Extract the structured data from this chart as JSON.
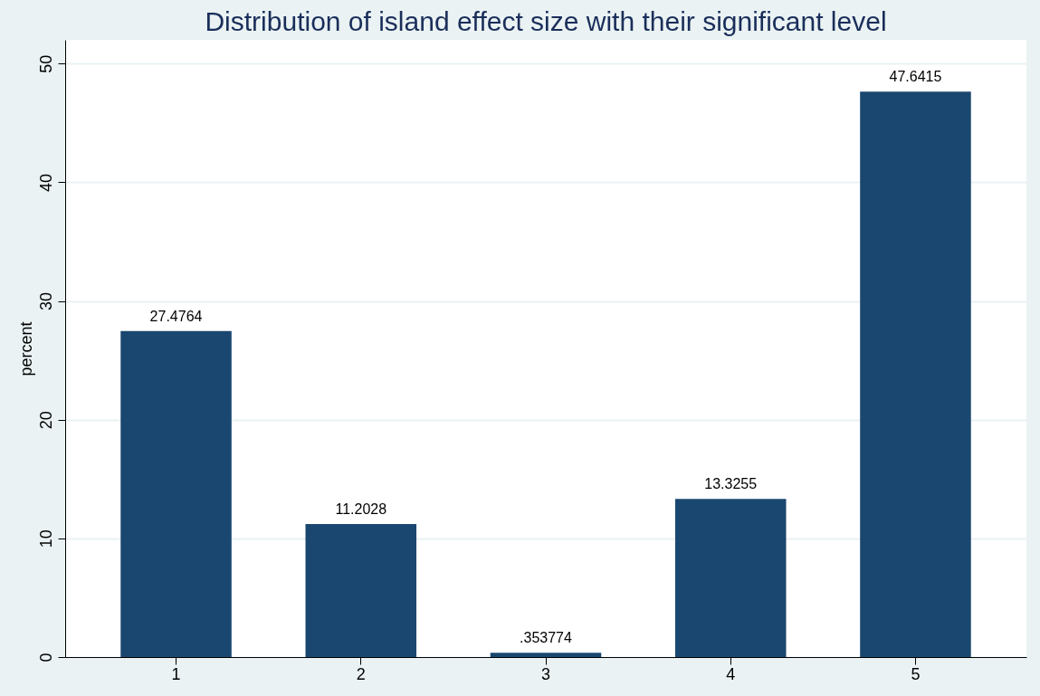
{
  "chart_data": {
    "type": "bar",
    "title": "Distribution of island effect size with their significant level",
    "ylabel": "percent",
    "categories": [
      "1",
      "2",
      "3",
      "4",
      "5"
    ],
    "values": [
      27.4764,
      11.2028,
      0.353774,
      13.3255,
      47.6415
    ],
    "value_labels": [
      "27.4764",
      "11.2028",
      ".353774",
      "13.3255",
      "47.6415"
    ],
    "color": "#1a476f",
    "ylim": [
      0,
      52
    ],
    "yticks": [
      0,
      10,
      20,
      30,
      40,
      50
    ],
    "grid": "y"
  }
}
